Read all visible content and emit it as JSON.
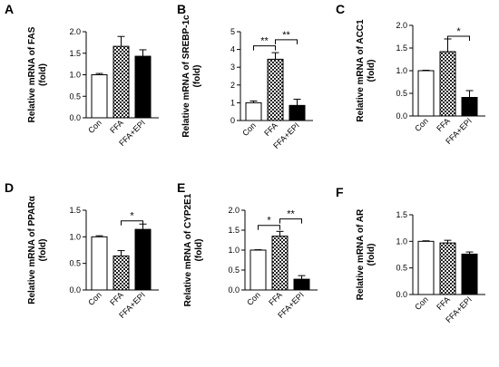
{
  "style": {
    "axis_color": "#000000",
    "bar_edge": "#000000",
    "checker_dark": "#222222",
    "checker_light": "#ffffff"
  },
  "chart_data": [
    {
      "panel_letter": "A",
      "type": "bar",
      "categories": [
        "Con",
        "FFA",
        "FFA+EPI"
      ],
      "values": [
        1.0,
        1.66,
        1.43
      ],
      "errors": [
        0.03,
        0.23,
        0.15
      ],
      "fills": [
        "white",
        "checker",
        "solid"
      ],
      "ylabel": [
        "Relative mRNA of FAS",
        "(fold)"
      ],
      "ylim": [
        0,
        2.0
      ],
      "yticks": [
        "0.0",
        "0.5",
        "1.0",
        "1.5",
        "2.0"
      ],
      "significance": []
    },
    {
      "panel_letter": "B",
      "type": "bar",
      "categories": [
        "Con",
        "FFA",
        "FFA+EPI"
      ],
      "values": [
        1.0,
        3.45,
        0.85
      ],
      "errors": [
        0.1,
        0.37,
        0.35
      ],
      "fills": [
        "white",
        "checker",
        "solid"
      ],
      "ylabel": [
        "Relative mRNA of SREBP-1c",
        "(fold)"
      ],
      "ylim": [
        0,
        5
      ],
      "yticks": [
        "0",
        "1",
        "2",
        "3",
        "4",
        "5"
      ],
      "significance": [
        {
          "from": 0,
          "to": 1,
          "label": "**",
          "y": 4.2
        },
        {
          "from": 1,
          "to": 2,
          "label": "**",
          "y": 4.55
        }
      ]
    },
    {
      "panel_letter": "C",
      "type": "bar",
      "categories": [
        "Con",
        "FFA",
        "FFA+EPI"
      ],
      "values": [
        1.0,
        1.42,
        0.41
      ],
      "errors": [
        0.01,
        0.28,
        0.15
      ],
      "fills": [
        "white",
        "checker",
        "solid"
      ],
      "ylabel": [
        "Relative mRNA of ACC1",
        "(fold)"
      ],
      "ylim": [
        0,
        2.0
      ],
      "yticks": [
        "0.0",
        "0.5",
        "1.0",
        "1.5",
        "2.0"
      ],
      "significance": [
        {
          "from": 1,
          "to": 2,
          "label": "*",
          "y": 1.76
        }
      ]
    },
    {
      "panel_letter": "D",
      "type": "bar",
      "categories": [
        "Con",
        "FFA",
        "FFA+EPI"
      ],
      "values": [
        1.0,
        0.64,
        1.14
      ],
      "errors": [
        0.02,
        0.1,
        0.1
      ],
      "fills": [
        "white",
        "checker",
        "solid"
      ],
      "ylabel": [
        "Relative mRNA of PPARα",
        "(fold)"
      ],
      "ylim": [
        0,
        1.5
      ],
      "yticks": [
        "0.0",
        "0.5",
        "1.0",
        "1.5"
      ],
      "significance": [
        {
          "from": 1,
          "to": 2,
          "label": "*",
          "y": 1.3
        }
      ]
    },
    {
      "panel_letter": "E",
      "type": "bar",
      "categories": [
        "Con",
        "FFA",
        "FFA+EPI"
      ],
      "values": [
        1.0,
        1.35,
        0.27
      ],
      "errors": [
        0.01,
        0.12,
        0.09
      ],
      "fills": [
        "white",
        "checker",
        "solid"
      ],
      "ylabel": [
        "Relative mRNA of CYP2E1",
        "(fold)"
      ],
      "ylim": [
        0,
        2.0
      ],
      "yticks": [
        "0.0",
        "0.5",
        "1.0",
        "1.5",
        "2.0"
      ],
      "significance": [
        {
          "from": 0,
          "to": 1,
          "label": "*",
          "y": 1.62
        },
        {
          "from": 1,
          "to": 2,
          "label": "**",
          "y": 1.78
        }
      ]
    },
    {
      "panel_letter": "F",
      "type": "bar",
      "categories": [
        "Con",
        "FFA",
        "FFA+EPI"
      ],
      "values": [
        1.0,
        0.97,
        0.76
      ],
      "errors": [
        0.01,
        0.05,
        0.04
      ],
      "fills": [
        "white",
        "checker",
        "solid"
      ],
      "ylabel": [
        "Relative mRNA of AR",
        "(fold)"
      ],
      "ylim": [
        0,
        1.5
      ],
      "yticks": [
        "0.0",
        "0.5",
        "1.0",
        "1.5"
      ],
      "significance": []
    }
  ]
}
